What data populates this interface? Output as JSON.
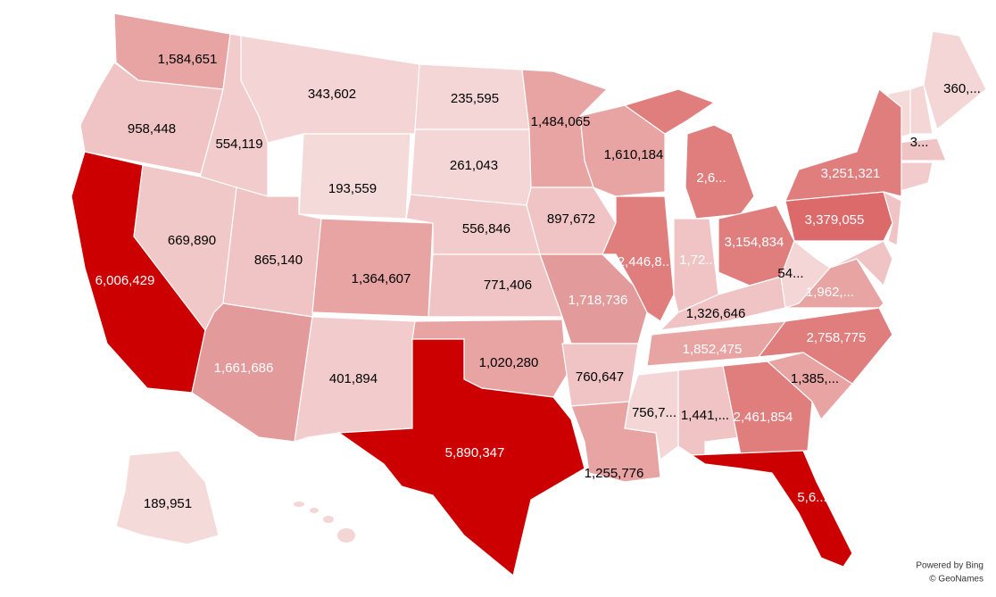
{
  "regions": [
    {
      "label": "1,584,651",
      "color": "#e8a3a3",
      "label_color": "#000"
    },
    {
      "label": "958,448",
      "color": "#f0c4c4",
      "label_color": "#000"
    },
    {
      "label": "6,006,429",
      "color": "#cc0000",
      "label_color": "#fff"
    },
    {
      "label": "554,119",
      "color": "#f2cccc",
      "label_color": "#000"
    },
    {
      "label": "669,890",
      "color": "#f0c8c8",
      "label_color": "#000"
    },
    {
      "label": "343,602",
      "color": "#f4d4d4",
      "label_color": "#000"
    },
    {
      "label": "193,559",
      "color": "#f5dada",
      "label_color": "#000"
    },
    {
      "label": "865,140",
      "color": "#f0c4c4",
      "label_color": "#000"
    },
    {
      "label": "1,364,607",
      "color": "#e8a3a3",
      "label_color": "#000"
    },
    {
      "label": "1,661,686",
      "color": "#e39a9a",
      "label_color": "#fff"
    },
    {
      "label": "401,894",
      "color": "#f2cccc",
      "label_color": "#000"
    },
    {
      "label": "235,595",
      "color": "#f4d6d6",
      "label_color": "#000"
    },
    {
      "label": "261,043",
      "color": "#f4d6d6",
      "label_color": "#000"
    },
    {
      "label": "556,846",
      "color": "#f2cccc",
      "label_color": "#000"
    },
    {
      "label": "771,406",
      "color": "#f0c4c4",
      "label_color": "#000"
    },
    {
      "label": "1,020,280",
      "color": "#e8a3a3",
      "label_color": "#000"
    },
    {
      "label": "5,890,347",
      "color": "#cc0000",
      "label_color": "#fff"
    },
    {
      "label": "1,484,065",
      "color": "#e8a3a3",
      "label_color": "#000"
    },
    {
      "label": "897,672",
      "color": "#f0c4c4",
      "label_color": "#000"
    },
    {
      "label": "1,718,736",
      "color": "#e39a9a",
      "label_color": "#fff"
    },
    {
      "label": "760,647",
      "color": "#f0c4c4",
      "label_color": "#000"
    },
    {
      "label": "1,255,776",
      "color": "#e8a3a3",
      "label_color": "#000"
    },
    {
      "label": "1,610,184",
      "color": "#e8a3a3",
      "label_color": "#000"
    },
    {
      "label": "2,446,8...",
      "color": "#e07e7e",
      "label_color": "#fff"
    },
    {
      "label": "2,6...",
      "color": "#e07e7e",
      "label_color": "#fff"
    },
    {
      "label": "1,72...",
      "color": "#f0c4c4",
      "label_color": "#fff"
    },
    {
      "label": "3,154,834",
      "color": "#e07e7e",
      "label_color": "#fff"
    },
    {
      "label": "1,326,646",
      "color": "#f0c4c4",
      "label_color": "#000"
    },
    {
      "label": "1,852,475",
      "color": "#e8a3a3",
      "label_color": "#fff"
    },
    {
      "label": "756,7...",
      "color": "#f4d6d6",
      "label_color": "#000"
    },
    {
      "label": "1,441,...",
      "color": "#f0c4c4",
      "label_color": "#000"
    },
    {
      "label": "2,461,854",
      "color": "#e07e7e",
      "label_color": "#fff"
    },
    {
      "label": "5,6...",
      "color": "#cc0000",
      "label_color": "#fff"
    },
    {
      "label": "1,385,...",
      "color": "#e8a3a3",
      "label_color": "#000"
    },
    {
      "label": "2,758,775",
      "color": "#e07e7e",
      "label_color": "#fff"
    },
    {
      "label": "1,962,...",
      "color": "#e8a3a3",
      "label_color": "#fff"
    },
    {
      "label": "54...",
      "color": "#f4d6d6",
      "label_color": "#000"
    },
    {
      "label": "3,379,055",
      "color": "#dc6a6a",
      "label_color": "#fff"
    },
    {
      "label": "3,251,321",
      "color": "#e07e7e",
      "label_color": "#fff"
    },
    {
      "label": "3...",
      "color": "#f4d6d6",
      "label_color": "#000"
    },
    {
      "label": "360,...",
      "color": "#f4d6d6",
      "label_color": "#000"
    },
    {
      "label": "189,951",
      "color": "#f5dada",
      "label_color": "#000"
    }
  ],
  "footer": {
    "line1": "Powered by Bing",
    "line2": "© GeoNames"
  }
}
